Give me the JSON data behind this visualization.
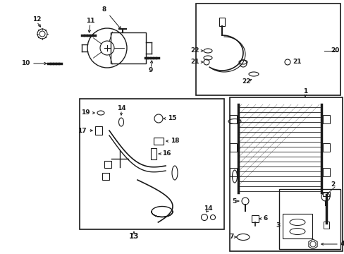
{
  "bg_color": "#ffffff",
  "line_color": "#1a1a1a",
  "text_color": "#1a1a1a",
  "fig_width": 4.89,
  "fig_height": 3.6,
  "dpi": 100,
  "fs": 6.5
}
